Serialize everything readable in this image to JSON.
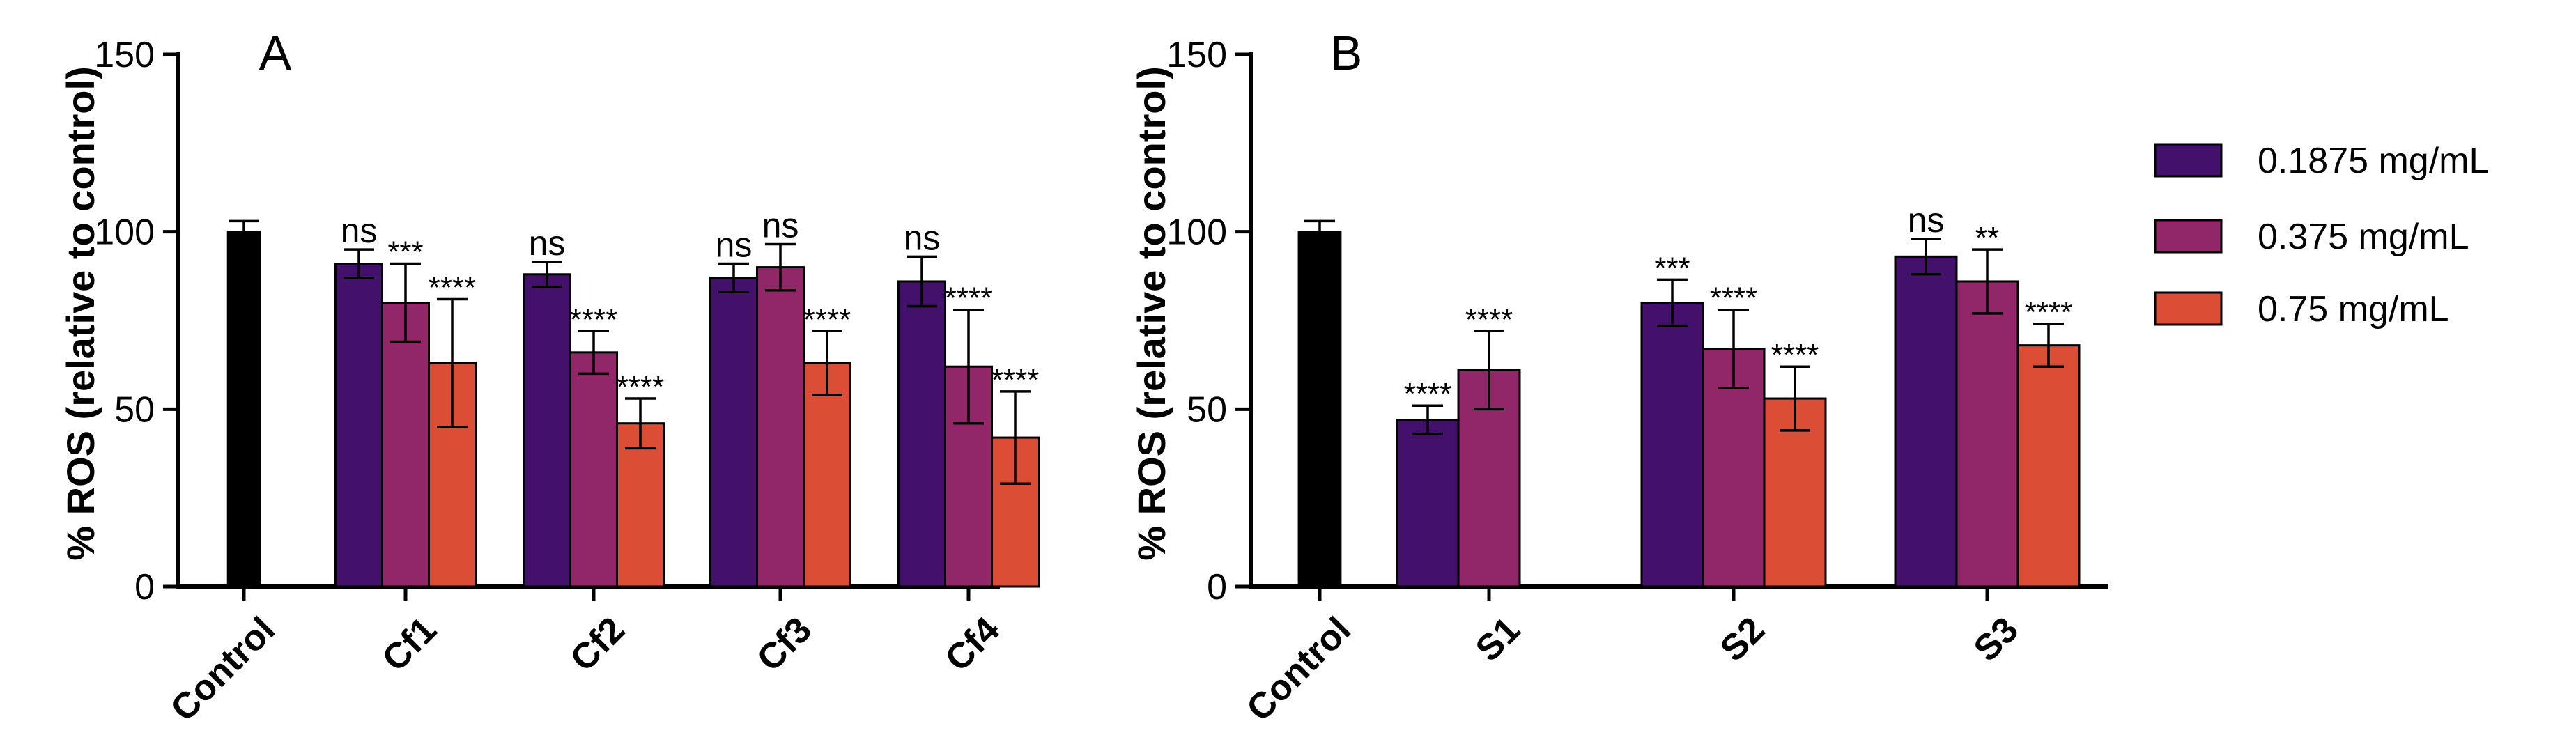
{
  "legend": [
    {
      "label": "0.1875 mg/mL",
      "color": "#43106B"
    },
    {
      "label": "0.375 mg/mL",
      "color": "#912768"
    },
    {
      "label": "0.75 mg/mL",
      "color": "#DB4D35"
    }
  ],
  "control_color": "#000000",
  "chart_data": [
    {
      "type": "bar",
      "panel": "A",
      "ylabel": "% ROS (relative to control)",
      "ylim": [
        0,
        150
      ],
      "yticks": [
        0,
        50,
        100,
        150
      ],
      "control": {
        "label": "Control",
        "value": 100,
        "error": 3
      },
      "categories": [
        "Cf1",
        "Cf2",
        "Cf3",
        "Cf4"
      ],
      "series": [
        {
          "name": "0.1875 mg/mL",
          "values": [
            91,
            88,
            87,
            86
          ],
          "errors": [
            4,
            3.5,
            4,
            7
          ],
          "significance": [
            "ns",
            "ns",
            "ns",
            "ns"
          ]
        },
        {
          "name": "0.375 mg/mL",
          "values": [
            80,
            66,
            90,
            62
          ],
          "errors": [
            11,
            6,
            6.5,
            16
          ],
          "significance": [
            "***",
            "****",
            "ns",
            "****"
          ]
        },
        {
          "name": "0.75 mg/mL",
          "values": [
            63,
            46,
            63,
            42
          ],
          "errors": [
            18,
            7,
            9,
            13
          ],
          "significance": [
            "****",
            "****",
            "****",
            "****"
          ]
        }
      ]
    },
    {
      "type": "bar",
      "panel": "B",
      "ylabel": "% ROS (relative to control)",
      "ylim": [
        0,
        150
      ],
      "yticks": [
        0,
        50,
        100,
        150
      ],
      "control": {
        "label": "Control",
        "value": 100,
        "error": 3
      },
      "categories": [
        "S1",
        "S2",
        "S3"
      ],
      "series": [
        {
          "name": "0.1875 mg/mL",
          "values": [
            47,
            80,
            93
          ],
          "errors": [
            4,
            6.5,
            5
          ],
          "significance": [
            "****",
            "***",
            "ns"
          ]
        },
        {
          "name": "0.375 mg/mL",
          "values": [
            61,
            67,
            86
          ],
          "errors": [
            11,
            11,
            9
          ],
          "significance": [
            "****",
            "****",
            "**"
          ]
        },
        {
          "name": "0.75 mg/mL",
          "values": [
            null,
            53,
            68
          ],
          "errors": [
            null,
            9,
            6
          ],
          "significance": [
            null,
            "****",
            "****"
          ]
        }
      ]
    }
  ]
}
